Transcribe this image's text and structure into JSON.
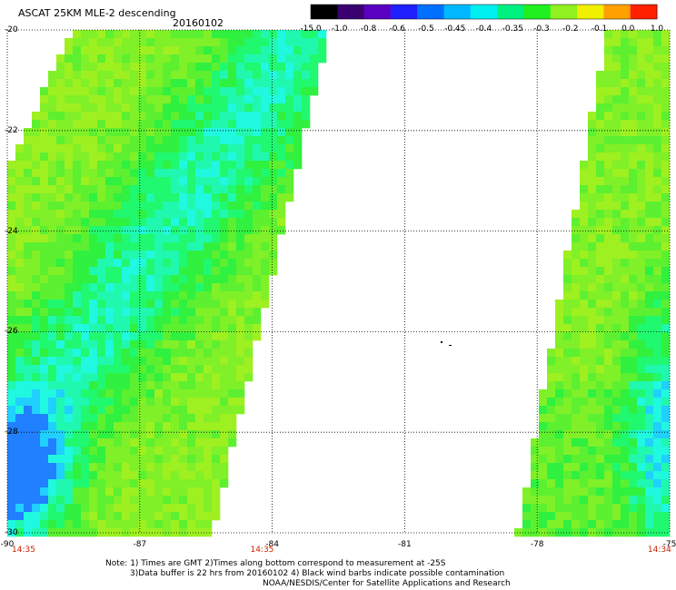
{
  "header": {
    "title": "ASCAT 25KM MLE-2 descending",
    "date": "20160102"
  },
  "colorbar": {
    "labels": [
      "-15.0",
      "-1.0",
      "-0.8",
      "-0.6",
      "-0.5",
      "-0.45",
      "-0.4",
      "-0.35",
      "-0.3",
      "-0.2",
      "-0.1",
      "0.0",
      "1.0"
    ]
  },
  "map": {
    "lat_labels": [
      "-20",
      "-22",
      "-24",
      "-26",
      "-28",
      "-30"
    ],
    "lon_labels": [
      "-90",
      "-87",
      "-84",
      "-81",
      "-78",
      "-75"
    ],
    "lat_range": [
      -30,
      -20
    ],
    "lon_range": [
      -90,
      -75
    ],
    "grid": true,
    "swath_times": [
      {
        "label": "14:35",
        "lon": -90
      },
      {
        "label": "14:35",
        "lon": -84.6
      },
      {
        "label": "14:34",
        "lon": -75.6
      }
    ]
  },
  "notes": {
    "line1": "Note: 1) Times are GMT 2)Times along bottom correspond to measurement at -25S",
    "line2": "3)Data buffer is 22 hrs from 20160102 4) Black wind barbs indicate possible contamination",
    "line3": "NOAA/NESDIS/Center for Satellite Applications and Research"
  },
  "colors": {
    "dominant": "#9ef020",
    "green": "#30f030",
    "cyan": "#20f8d8",
    "blue": "#2080ff"
  }
}
